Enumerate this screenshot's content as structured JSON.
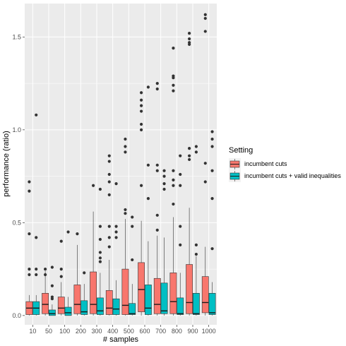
{
  "chart_data": {
    "type": "boxplot",
    "xlabel": "# samples",
    "ylabel": "performance (ratio)",
    "categories": [
      "10",
      "50",
      "100",
      "200",
      "300",
      "400",
      "500",
      "600",
      "700",
      "800",
      "900",
      "1000"
    ],
    "ylim": [
      -0.05,
      1.68
    ],
    "yticks": [
      0.0,
      0.5,
      1.0,
      1.5
    ],
    "ytick_labels": [
      "0.0",
      "0.5",
      "1.0",
      "1.5"
    ],
    "grid": true,
    "legend_position": "right",
    "legend_title": "Setting",
    "series": [
      {
        "name": "incumbent cuts",
        "color": "#F8766D",
        "boxes": [
          {
            "low": 0.0,
            "q1": 0.005,
            "median": 0.04,
            "q3": 0.075,
            "high": 0.11,
            "outliers": [
              0.72,
              0.67,
              0.44,
              0.25,
              0.22
            ]
          },
          {
            "low": 0.0,
            "q1": 0.01,
            "median": 0.06,
            "q3": 0.12,
            "high": 0.24,
            "outliers": [
              0.25,
              0.22
            ]
          },
          {
            "low": 0.0,
            "q1": 0.01,
            "median": 0.04,
            "q3": 0.1,
            "high": 0.18,
            "outliers": [
              0.4,
              0.25,
              0.21
            ]
          },
          {
            "low": 0.0,
            "q1": 0.01,
            "median": 0.06,
            "q3": 0.165,
            "high": 0.38,
            "outliers": [
              0.44
            ]
          },
          {
            "low": 0.0,
            "q1": 0.01,
            "median": 0.06,
            "q3": 0.235,
            "high": 0.56,
            "outliers": [
              0.7
            ]
          },
          {
            "low": 0.0,
            "q1": 0.005,
            "median": 0.04,
            "q3": 0.135,
            "high": 0.3,
            "outliers": [
              0.86,
              0.83,
              0.76,
              0.72,
              0.65,
              0.48,
              0.42,
              0.37
            ]
          },
          {
            "low": 0.0,
            "q1": 0.005,
            "median": 0.055,
            "q3": 0.25,
            "high": 0.52,
            "outliers": [
              0.95,
              0.91,
              0.88,
              0.57,
              0.55
            ]
          },
          {
            "low": 0.0,
            "q1": 0.02,
            "median": 0.14,
            "q3": 0.285,
            "high": 0.51,
            "outliers": [
              1.2,
              1.16,
              1.13,
              1.1,
              1.03,
              1.0,
              0.7
            ]
          },
          {
            "low": 0.0,
            "q1": 0.01,
            "median": 0.06,
            "q3": 0.2,
            "high": 0.43,
            "outliers": [
              1.25,
              1.22,
              0.81,
              0.78,
              0.54,
              0.46
            ]
          },
          {
            "low": 0.0,
            "q1": 0.01,
            "median": 0.075,
            "q3": 0.23,
            "high": 0.53,
            "outliers": [
              1.44,
              1.29,
              1.28,
              1.24,
              1.21,
              0.78,
              0.73,
              0.7,
              0.6
            ]
          },
          {
            "low": 0.0,
            "q1": 0.01,
            "median": 0.07,
            "q3": 0.275,
            "high": 0.58,
            "outliers": [
              1.52,
              1.49,
              1.47,
              1.46,
              0.9,
              0.86,
              0.84
            ]
          },
          {
            "low": 0.0,
            "q1": 0.015,
            "median": 0.07,
            "q3": 0.21,
            "high": 0.37,
            "outliers": [
              1.62,
              1.6,
              1.53,
              0.82,
              0.72
            ]
          }
        ]
      },
      {
        "name": "incumbent cuts + valid inequalities",
        "color": "#00BFC4",
        "boxes": [
          {
            "low": 0.0,
            "q1": 0.005,
            "median": 0.04,
            "q3": 0.075,
            "high": 0.11,
            "outliers": [
              1.08,
              0.42,
              0.25,
              0.22
            ]
          },
          {
            "low": 0.0,
            "q1": 0.0,
            "median": 0.01,
            "q3": 0.03,
            "high": 0.06,
            "outliers": [
              0.26,
              0.16,
              0.1,
              0.09
            ]
          },
          {
            "low": 0.0,
            "q1": 0.0,
            "median": 0.015,
            "q3": 0.045,
            "high": 0.1,
            "outliers": [
              0.45
            ]
          },
          {
            "low": 0.0,
            "q1": 0.005,
            "median": 0.02,
            "q3": 0.08,
            "high": 0.17,
            "outliers": [
              0.23
            ]
          },
          {
            "low": 0.0,
            "q1": 0.005,
            "median": 0.025,
            "q3": 0.095,
            "high": 0.23,
            "outliers": [
              0.68,
              0.48,
              0.41,
              0.34,
              0.31,
              0.29
            ]
          },
          {
            "low": 0.0,
            "q1": 0.005,
            "median": 0.035,
            "q3": 0.09,
            "high": 0.19,
            "outliers": [
              0.71,
              0.48,
              0.45,
              0.42
            ]
          },
          {
            "low": 0.0,
            "q1": 0.005,
            "median": 0.01,
            "q3": 0.065,
            "high": 0.17,
            "outliers": [
              0.53,
              0.48,
              0.3
            ]
          },
          {
            "low": 0.0,
            "q1": 0.005,
            "median": 0.04,
            "q3": 0.165,
            "high": 0.4,
            "outliers": [
              1.23,
              0.81,
              0.63
            ]
          },
          {
            "low": 0.0,
            "q1": 0.01,
            "median": 0.025,
            "q3": 0.175,
            "high": 0.42,
            "outliers": [
              0.78,
              0.75,
              0.71,
              0.68
            ]
          },
          {
            "low": 0.0,
            "q1": 0.005,
            "median": 0.01,
            "q3": 0.095,
            "high": 0.23,
            "outliers": [
              0.86,
              0.76,
              0.7,
              0.48,
              0.38
            ]
          },
          {
            "low": 0.0,
            "q1": 0.005,
            "median": 0.01,
            "q3": 0.12,
            "high": 0.32,
            "outliers": [
              0.91,
              0.88,
              0.38,
              0.33
            ]
          },
          {
            "low": 0.0,
            "q1": 0.005,
            "median": 0.015,
            "q3": 0.12,
            "high": 0.18,
            "outliers": [
              0.99,
              0.95,
              0.91,
              0.78,
              0.63,
              0.36
            ]
          }
        ]
      }
    ]
  }
}
